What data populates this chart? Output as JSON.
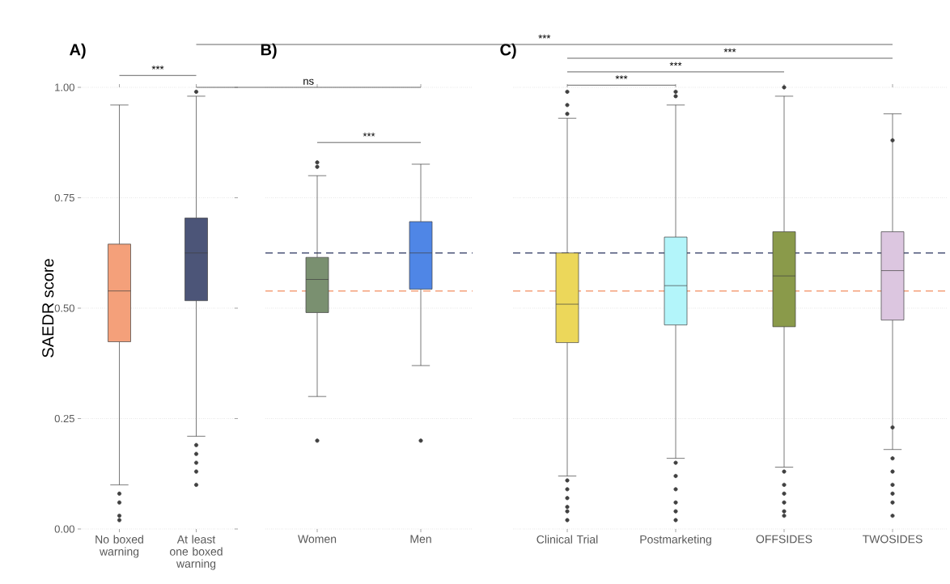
{
  "chart_data": [
    {
      "type": "box",
      "title": "A)",
      "ylabel": "SAEDR score",
      "categories": [
        "No boxed warning",
        "At least one boxed warning"
      ],
      "colors": [
        "#f4a07a",
        "#4c5578"
      ],
      "boxes": [
        {
          "low": 0.1,
          "q1": 0.424,
          "median": 0.539,
          "q3": 0.645,
          "high": 0.96,
          "outliers": [
            0.08,
            0.06,
            0.03,
            0.02
          ]
        },
        {
          "low": 0.21,
          "q1": 0.517,
          "median": 0.625,
          "q3": 0.704,
          "high": 0.98,
          "outliers": [
            0.99,
            0.19,
            0.17,
            0.15,
            0.13,
            0.1
          ]
        }
      ],
      "ylim": [
        0,
        1
      ],
      "yticks": [
        {
          "value": 0,
          "label": "0.00"
        },
        {
          "value": 0.25,
          "label": "0.25"
        },
        {
          "value": 0.5,
          "label": "0.50"
        },
        {
          "value": 0.75,
          "label": "0.75"
        },
        {
          "value": 1,
          "label": "1.00"
        }
      ],
      "grid": "y",
      "annotations": [
        "***"
      ]
    },
    {
      "type": "box",
      "title": "B)",
      "categories": [
        "Women",
        "Men"
      ],
      "colors": [
        "#7a9070",
        "#4f86e6"
      ],
      "boxes": [
        {
          "low": 0.3,
          "q1": 0.49,
          "median": 0.565,
          "q3": 0.615,
          "high": 0.8,
          "outliers": [
            0.83,
            0.82,
            0.2
          ]
        },
        {
          "low": 0.37,
          "q1": 0.543,
          "median": 0.625,
          "q3": 0.696,
          "high": 0.826,
          "outliers": [
            0.2
          ]
        }
      ],
      "ylim": [
        0,
        1
      ],
      "yticks": [
        0,
        0.25,
        0.5,
        0.75,
        1
      ],
      "grid": "y",
      "tick_labels": "x",
      "ref_lines": [
        {
          "axis": "y",
          "value": 0.625,
          "color": "#4c5578",
          "line_style": "dashed"
        },
        {
          "axis": "y",
          "value": 0.539,
          "color": "#f4a07a",
          "line_style": "dashed"
        }
      ],
      "annotations": [
        "ns",
        "***"
      ]
    },
    {
      "type": "box",
      "title": "C)",
      "categories": [
        "Clinical Trial",
        "Postmarketing",
        "OFFSIDES",
        "TWOSIDES"
      ],
      "colors": [
        "#ecd75a",
        "#b3f5fa",
        "#8a9a4a",
        "#dcc6e0"
      ],
      "boxes": [
        {
          "low": 0.12,
          "q1": 0.422,
          "median": 0.509,
          "q3": 0.625,
          "high": 0.93,
          "outliers": [
            0.99,
            0.96,
            0.94,
            0.11,
            0.09,
            0.07,
            0.05,
            0.04,
            0.02
          ]
        },
        {
          "low": 0.16,
          "q1": 0.462,
          "median": 0.551,
          "q3": 0.661,
          "high": 0.96,
          "outliers": [
            0.99,
            0.98,
            0.15,
            0.12,
            0.09,
            0.06,
            0.04,
            0.02
          ]
        },
        {
          "low": 0.14,
          "q1": 0.458,
          "median": 0.573,
          "q3": 0.673,
          "high": 0.98,
          "outliers": [
            1.0,
            0.13,
            0.1,
            0.08,
            0.06,
            0.04,
            0.03
          ]
        },
        {
          "low": 0.18,
          "q1": 0.473,
          "median": 0.585,
          "q3": 0.673,
          "high": 0.94,
          "outliers": [
            0.88,
            0.23,
            0.16,
            0.13,
            0.1,
            0.08,
            0.06,
            0.03
          ]
        }
      ],
      "ylim": [
        0,
        1
      ],
      "yticks": [
        0,
        0.25,
        0.5,
        0.75,
        1
      ],
      "grid": "y",
      "tick_labels": "x",
      "ref_lines": [
        {
          "axis": "y",
          "value": 0.625,
          "color": "#4c5578",
          "line_style": "dashed"
        },
        {
          "axis": "y",
          "value": 0.539,
          "color": "#f4a07a",
          "line_style": "dashed"
        }
      ],
      "annotations": [
        "***",
        "***",
        "***",
        "***"
      ]
    }
  ]
}
